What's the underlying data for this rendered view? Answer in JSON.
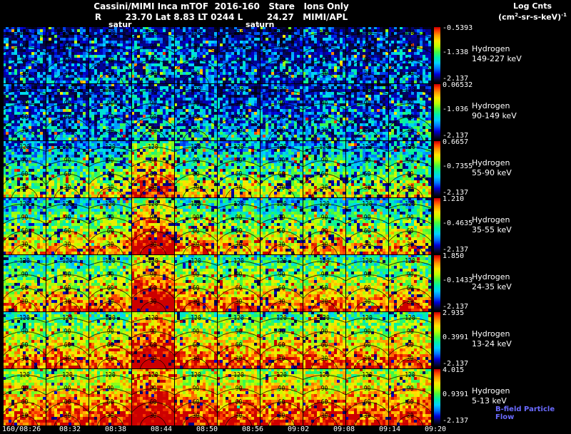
{
  "header": {
    "title": "Cassini/MIMI Inca mTOF  2016-160   Stare   Ions Only",
    "subtitle": "R        23.70 Lat 8.83 LT 0244 L        24.27   MIMI/APL",
    "log_cnts_label": "Log Cnts",
    "units_pre": "(cm",
    "units_sup1": "2",
    "units_mid": "-sr-s-keV)",
    "units_sup2": "-1",
    "saturn_label_left": "satur",
    "saturn_label_right": "saturn"
  },
  "footer": {
    "bfield_label": "B-field Particle Flow"
  },
  "chart_data": {
    "type": "heatmap",
    "title": "Cassini/MIMI Inca mTOF 2016-160 Stare Ions Only",
    "instrument": "MIMI/APL",
    "position_readout": {
      "R": "23.70",
      "Lat": "8.83",
      "LT": "0244",
      "L": "24.27"
    },
    "colorscale_units": "Log Cnts (cm2-sr-s-keV)-1",
    "colorscale_min_log": -2.137,
    "time_labels": [
      "160/08:26",
      "08:32",
      "08:38",
      "08:44",
      "08:50",
      "08:56",
      "09:02",
      "09:08",
      "09:14",
      "09:20"
    ],
    "pitch_angle_contours": [
      30,
      60,
      90,
      120
    ],
    "rows": [
      {
        "species": "Hydrogen",
        "energy": "149-227 keV",
        "scale_max": "-0.5393",
        "scale_mid": "-1.338",
        "scale_min": "-2.137"
      },
      {
        "species": "Hydrogen",
        "energy": "90-149 keV",
        "scale_max": "0.06532",
        "scale_mid": "-1.036",
        "scale_min": "-2.137"
      },
      {
        "species": "Hydrogen",
        "energy": "55-90 keV",
        "scale_max": "0.6657",
        "scale_mid": "-0.7355",
        "scale_min": "-2.137"
      },
      {
        "species": "Hydrogen",
        "energy": "35-55 keV",
        "scale_max": "1.210",
        "scale_mid": "-0.4635",
        "scale_min": "-2.137"
      },
      {
        "species": "Hydrogen",
        "energy": "24-35 keV",
        "scale_max": "1.850",
        "scale_mid": "-0.1433",
        "scale_min": "-2.137"
      },
      {
        "species": "Hydrogen",
        "energy": "13-24 keV",
        "scale_max": "2.935",
        "scale_mid": "0.3991",
        "scale_min": "-2.137"
      },
      {
        "species": "Hydrogen",
        "energy": "5-13 keV",
        "scale_max": "4.015",
        "scale_mid": "0.9391",
        "scale_min": "-2.137"
      }
    ],
    "intensity_matrix": [
      [
        0.22,
        0.2,
        0.24,
        0.3,
        0.26,
        0.22,
        0.2,
        0.26,
        0.22,
        0.24
      ],
      [
        0.26,
        0.24,
        0.28,
        0.34,
        0.3,
        0.26,
        0.3,
        0.3,
        0.26,
        0.3
      ],
      [
        0.42,
        0.44,
        0.48,
        0.72,
        0.52,
        0.46,
        0.44,
        0.5,
        0.44,
        0.48
      ],
      [
        0.52,
        0.54,
        0.58,
        0.82,
        0.6,
        0.55,
        0.54,
        0.58,
        0.54,
        0.56
      ],
      [
        0.58,
        0.6,
        0.62,
        0.88,
        0.66,
        0.62,
        0.6,
        0.64,
        0.6,
        0.62
      ],
      [
        0.64,
        0.66,
        0.68,
        0.9,
        0.7,
        0.68,
        0.66,
        0.7,
        0.66,
        0.68
      ],
      [
        0.74,
        0.76,
        0.78,
        0.94,
        0.8,
        0.78,
        0.76,
        0.78,
        0.76,
        0.77
      ]
    ],
    "colormap": "rainbow (black-blue-cyan-green-yellow-orange-red)"
  }
}
